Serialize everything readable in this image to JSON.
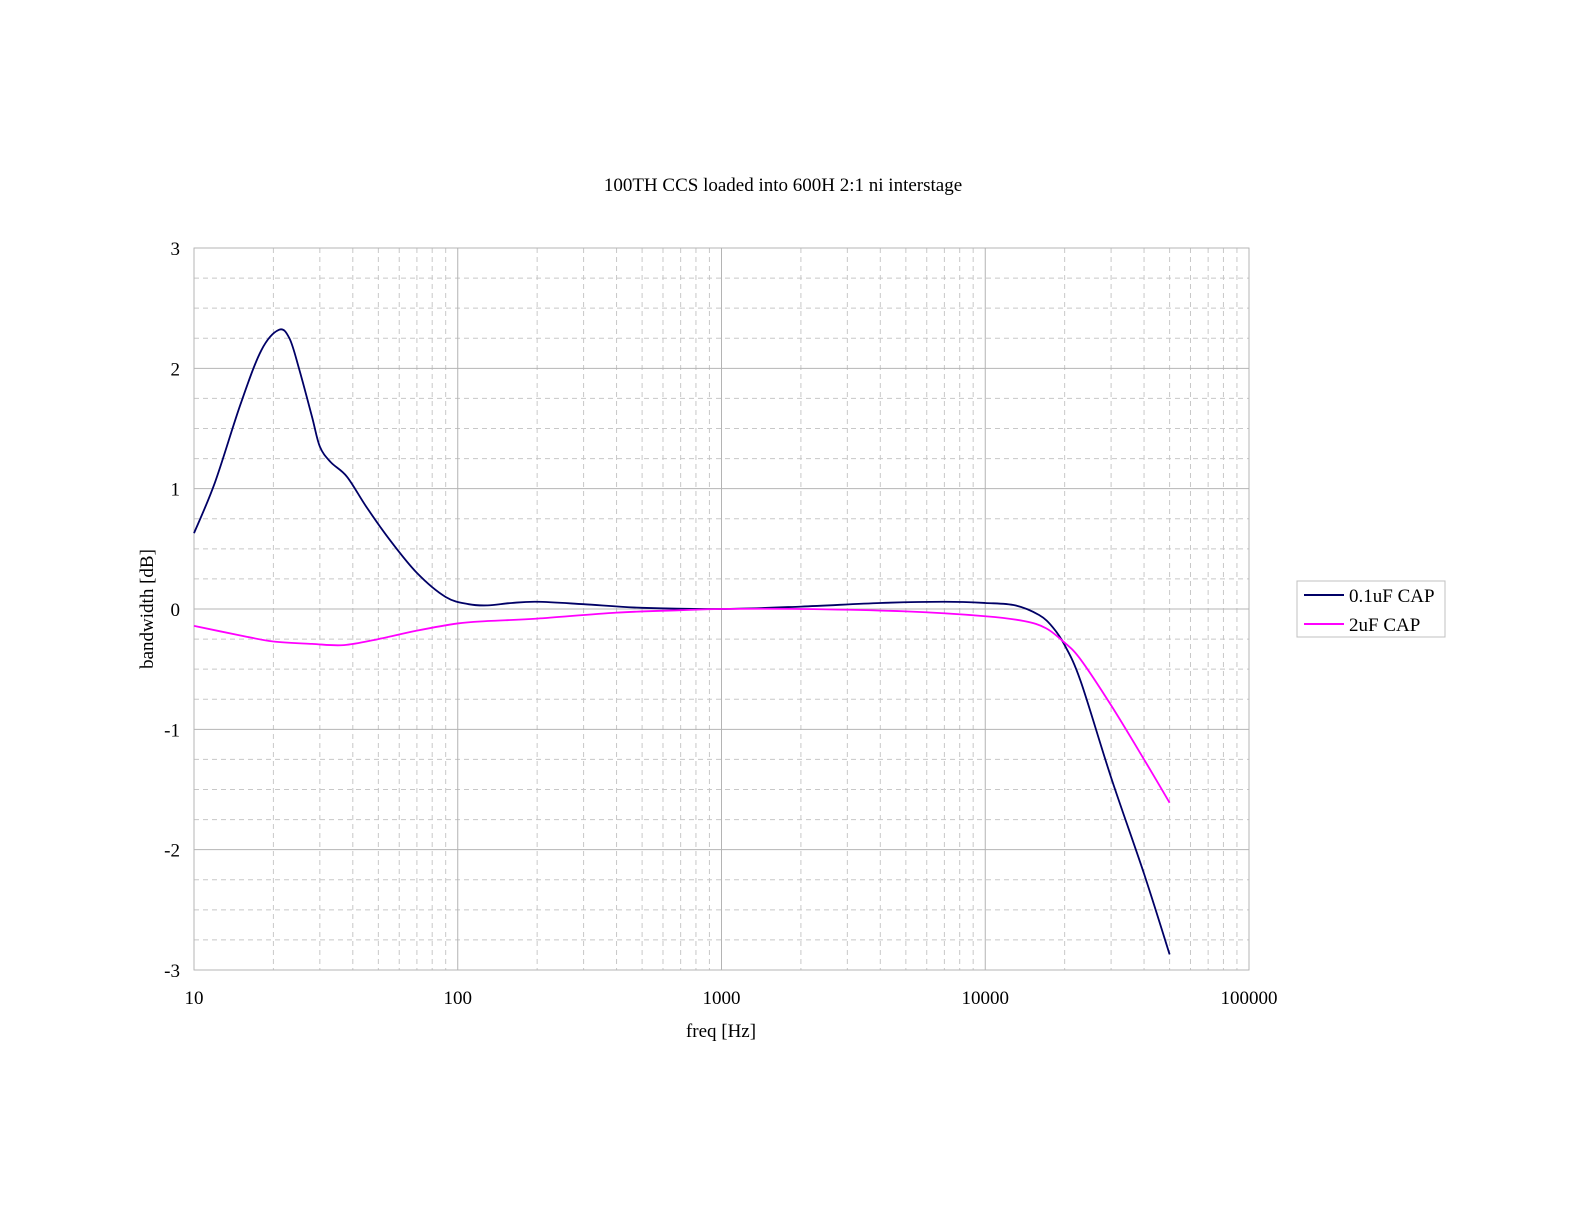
{
  "chart_data": {
    "type": "line",
    "title": "100TH CCS loaded into 600H 2:1 ni interstage",
    "xlabel": "freq [Hz]",
    "ylabel": "bandwidth [dB]",
    "x_scale": "log",
    "xlim": [
      10,
      100000
    ],
    "ylim": [
      -3,
      3
    ],
    "x_ticks": [
      10,
      100,
      1000,
      10000,
      100000
    ],
    "x_tick_labels": [
      "10",
      "100",
      "1000",
      "10000",
      "100000"
    ],
    "y_ticks": [
      3,
      2,
      1,
      0,
      -1,
      -2,
      -3
    ],
    "y_tick_labels": [
      "3",
      "2",
      "1",
      "0",
      "-1",
      "-2",
      "-3"
    ],
    "grid": true,
    "legend_position": "right",
    "series": [
      {
        "name": "0.1uF CAP",
        "color": "#000066",
        "x": [
          10,
          12,
          15,
          18,
          21,
          23,
          25,
          28,
          30,
          33,
          38,
          45,
          55,
          70,
          90,
          110,
          130,
          160,
          200,
          300,
          500,
          1000,
          2000,
          4000,
          7000,
          10000,
          13000,
          16000,
          18000,
          20000,
          23000,
          30000,
          40000,
          50000
        ],
        "y": [
          0.63,
          1.05,
          1.7,
          2.15,
          2.32,
          2.25,
          2.0,
          1.6,
          1.35,
          1.22,
          1.1,
          0.85,
          0.58,
          0.3,
          0.1,
          0.04,
          0.03,
          0.05,
          0.06,
          0.04,
          0.01,
          0.0,
          0.02,
          0.05,
          0.06,
          0.05,
          0.03,
          -0.05,
          -0.15,
          -0.3,
          -0.6,
          -1.4,
          -2.2,
          -2.87
        ]
      },
      {
        "name": "2uF CAP",
        "color": "#ff00ff",
        "x": [
          10,
          15,
          20,
          28,
          37,
          50,
          70,
          100,
          130,
          200,
          400,
          700,
          1000,
          2000,
          5000,
          10000,
          14000,
          17000,
          20000,
          23000,
          30000,
          40000,
          50000
        ],
        "y": [
          -0.14,
          -0.22,
          -0.27,
          -0.29,
          -0.3,
          -0.25,
          -0.18,
          -0.12,
          -0.1,
          -0.08,
          -0.03,
          -0.01,
          0.0,
          0.0,
          -0.02,
          -0.06,
          -0.1,
          -0.16,
          -0.28,
          -0.42,
          -0.8,
          -1.25,
          -1.61
        ]
      }
    ]
  }
}
